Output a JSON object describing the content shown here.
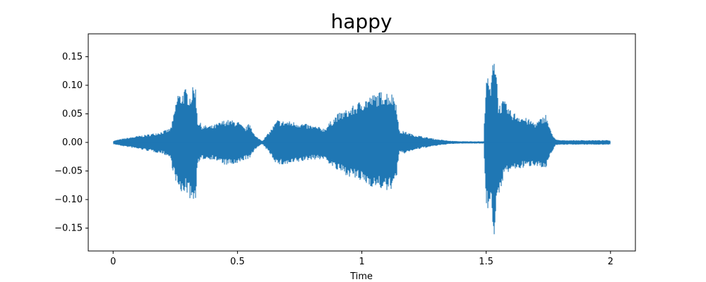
{
  "chart_data": {
    "type": "area",
    "title": "happy",
    "xlabel": "Time",
    "ylabel": "",
    "xlim": [
      -0.1,
      2.1
    ],
    "ylim": [
      -0.19,
      0.19
    ],
    "x_ticks": [
      0,
      0.5,
      1,
      1.5,
      2
    ],
    "x_tick_labels": [
      "0",
      "0.5",
      "1",
      "1.5",
      "2"
    ],
    "y_ticks": [
      -0.15,
      -0.1,
      -0.05,
      0.0,
      0.05,
      0.1,
      0.15
    ],
    "y_tick_labels": [
      "−0.15",
      "−0.10",
      "−0.05",
      "0.00",
      "0.05",
      "0.10",
      "0.15"
    ],
    "grid": false,
    "series": [
      {
        "color": "#1f77b4",
        "envelope": {
          "x": [
            0.0,
            0.03,
            0.08,
            0.15,
            0.2,
            0.23,
            0.24,
            0.26,
            0.27,
            0.29,
            0.31,
            0.33,
            0.34,
            0.36,
            0.4,
            0.45,
            0.5,
            0.53,
            0.55,
            0.57,
            0.6,
            0.63,
            0.66,
            0.68,
            0.7,
            0.75,
            0.8,
            0.85,
            0.9,
            0.95,
            1.0,
            1.05,
            1.08,
            1.1,
            1.13,
            1.14,
            1.15,
            1.17,
            1.2,
            1.25,
            1.3,
            1.35,
            1.4,
            1.45,
            1.49,
            1.5,
            1.51,
            1.52,
            1.53,
            1.54,
            1.55,
            1.57,
            1.6,
            1.65,
            1.7,
            1.74,
            1.76,
            1.78,
            1.8,
            1.85,
            1.9,
            1.95,
            2.0
          ],
          "upper": [
            0.003,
            0.006,
            0.01,
            0.015,
            0.02,
            0.025,
            0.04,
            0.09,
            0.085,
            0.095,
            0.085,
            0.108,
            0.04,
            0.03,
            0.03,
            0.04,
            0.038,
            0.025,
            0.035,
            0.012,
            0.003,
            0.02,
            0.04,
            0.038,
            0.038,
            0.035,
            0.03,
            0.025,
            0.05,
            0.06,
            0.075,
            0.085,
            0.09,
            0.09,
            0.085,
            0.07,
            0.02,
            0.02,
            0.015,
            0.01,
            0.006,
            0.003,
            0.002,
            0.002,
            0.002,
            0.13,
            0.105,
            0.1,
            0.172,
            0.14,
            0.065,
            0.075,
            0.055,
            0.045,
            0.035,
            0.05,
            0.02,
            0.005,
            0.004,
            0.004,
            0.004,
            0.004,
            0.004
          ],
          "lower": [
            -0.003,
            -0.006,
            -0.01,
            -0.016,
            -0.02,
            -0.028,
            -0.05,
            -0.08,
            -0.095,
            -0.085,
            -0.1,
            -0.108,
            -0.04,
            -0.03,
            -0.03,
            -0.04,
            -0.04,
            -0.03,
            -0.03,
            -0.012,
            -0.003,
            -0.02,
            -0.04,
            -0.04,
            -0.04,
            -0.035,
            -0.03,
            -0.03,
            -0.05,
            -0.06,
            -0.07,
            -0.08,
            -0.082,
            -0.088,
            -0.078,
            -0.06,
            -0.02,
            -0.02,
            -0.015,
            -0.01,
            -0.006,
            -0.003,
            -0.002,
            -0.002,
            -0.002,
            -0.115,
            -0.12,
            -0.09,
            -0.173,
            -0.13,
            -0.1,
            -0.06,
            -0.05,
            -0.045,
            -0.04,
            -0.05,
            -0.02,
            -0.005,
            -0.004,
            -0.004,
            -0.004,
            -0.004,
            -0.004
          ]
        }
      }
    ]
  }
}
